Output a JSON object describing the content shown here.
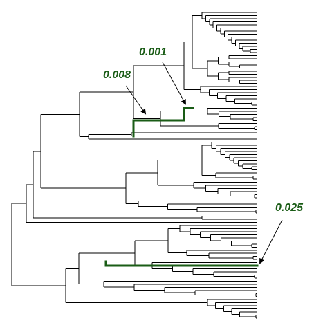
{
  "annotations": {
    "branch_a": "0.008",
    "branch_b": "0.001",
    "branch_c": "0.025"
  },
  "colors": {
    "highlight": "#1a5c16",
    "tree": "#000000",
    "background": "#ffffff"
  }
}
